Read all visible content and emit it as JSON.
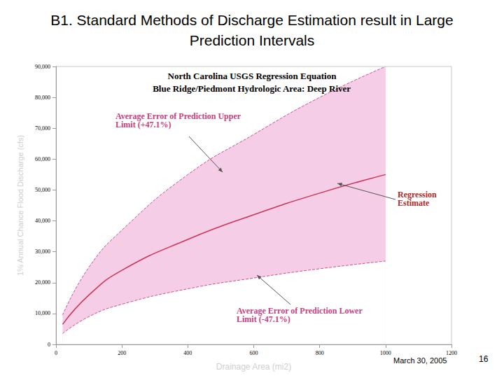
{
  "slide": {
    "title": "B1. Standard Methods of Discharge Estimation result in Large Prediction Intervals",
    "date": "March 30, 2005",
    "page": "16"
  },
  "chart_data": {
    "type": "line",
    "title": "North Carolina USGS Regression Equation",
    "subtitle": "Blue Ridge/Piedmont Hydrologic Area: Deep River",
    "xlabel": "Drainage Area (mi2)",
    "ylabel": "1% Annual Chance Flood Discharge (cfs)",
    "x": [
      20,
      100,
      200,
      400,
      600,
      800,
      1000
    ],
    "series": [
      {
        "name": "Average Error of Prediction Upper Limit (+47.1%)",
        "color": "#d0508a",
        "line_style": "dashed",
        "values": [
          9500,
          25000,
          37000,
          55000,
          68000,
          80000,
          90000
        ]
      },
      {
        "name": "Regression Estimate",
        "color": "#cc3355",
        "line_style": "solid",
        "values": [
          6500,
          16000,
          24000,
          34000,
          42000,
          49000,
          55000
        ]
      },
      {
        "name": "Average Error of Prediction Lower Limit (-47.1%)",
        "color": "#d0508a",
        "line_style": "dashed",
        "values": [
          3500,
          9000,
          13000,
          18000,
          21500,
          24500,
          27000
        ]
      }
    ],
    "xlim": [
      0,
      1200
    ],
    "xticks": [
      0,
      200,
      400,
      600,
      800,
      1000,
      1200
    ],
    "ylim": [
      0,
      90000
    ],
    "yticks": [
      0,
      {
        "value": 10000,
        "label": "10,000"
      },
      {
        "value": 20000,
        "label": "20,000"
      },
      {
        "value": 30000,
        "label": "30,000"
      },
      {
        "value": 40000,
        "label": "40,000"
      },
      {
        "value": 50000,
        "label": "50,000"
      },
      {
        "value": 60000,
        "label": "60,000"
      },
      {
        "value": 70000,
        "label": "70,000"
      },
      {
        "value": 80000,
        "label": "80,000"
      },
      {
        "value": 90000,
        "label": "90,000"
      }
    ],
    "grid": false
  }
}
